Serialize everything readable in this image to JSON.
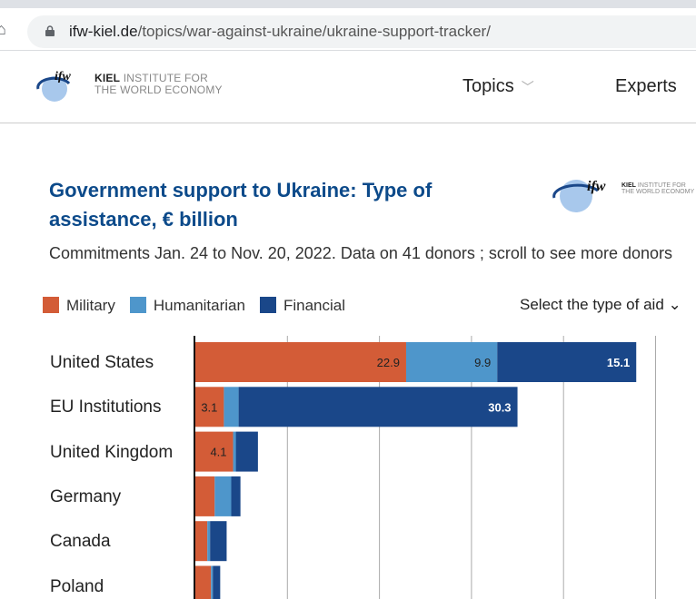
{
  "browser": {
    "url_domain": "ifw-kiel.de",
    "url_path": "/topics/war-against-ukraine/ukraine-support-tracker/"
  },
  "header": {
    "logo_bold": "KIEL",
    "logo_line1": "INSTITUTE FOR",
    "logo_line2": "THE WORLD ECONOMY",
    "logo_mark": "ifw",
    "nav": [
      {
        "label": "Topics"
      },
      {
        "label": "Experts"
      }
    ]
  },
  "chart_data": {
    "type": "bar",
    "orientation": "horizontal-stacked",
    "title": "Government support to Ukraine: Type of assistance, € billion",
    "subtitle": "Commitments Jan. 24 to Nov. 20, 2022. Data on 41 donors ; scroll to see more donors",
    "select_label": "Select the type of aid",
    "categories": [
      "United States",
      "EU Institutions",
      "United Kingdom",
      "Germany",
      "Canada",
      "Poland"
    ],
    "series": [
      {
        "name": "Military",
        "color": "#d35c37",
        "values": [
          22.9,
          3.1,
          4.1,
          2.1,
          1.3,
          1.7
        ],
        "labels": [
          "22.9",
          "3.1",
          "4.1",
          "",
          "",
          ""
        ]
      },
      {
        "name": "Humanitarian",
        "color": "#4e96cb",
        "values": [
          9.9,
          1.6,
          0.3,
          1.8,
          0.3,
          0.2
        ],
        "labels": [
          "9.9",
          "",
          "",
          "",
          "",
          ""
        ]
      },
      {
        "name": "Financial",
        "color": "#1a4789",
        "values": [
          15.1,
          30.3,
          2.4,
          1.0,
          1.8,
          0.8
        ],
        "labels": [
          "15.1",
          "30.3",
          "",
          "",
          "",
          ""
        ]
      }
    ],
    "gridlines": [
      10,
      20,
      30,
      40,
      50
    ],
    "grid": true,
    "legend": "top-left"
  }
}
